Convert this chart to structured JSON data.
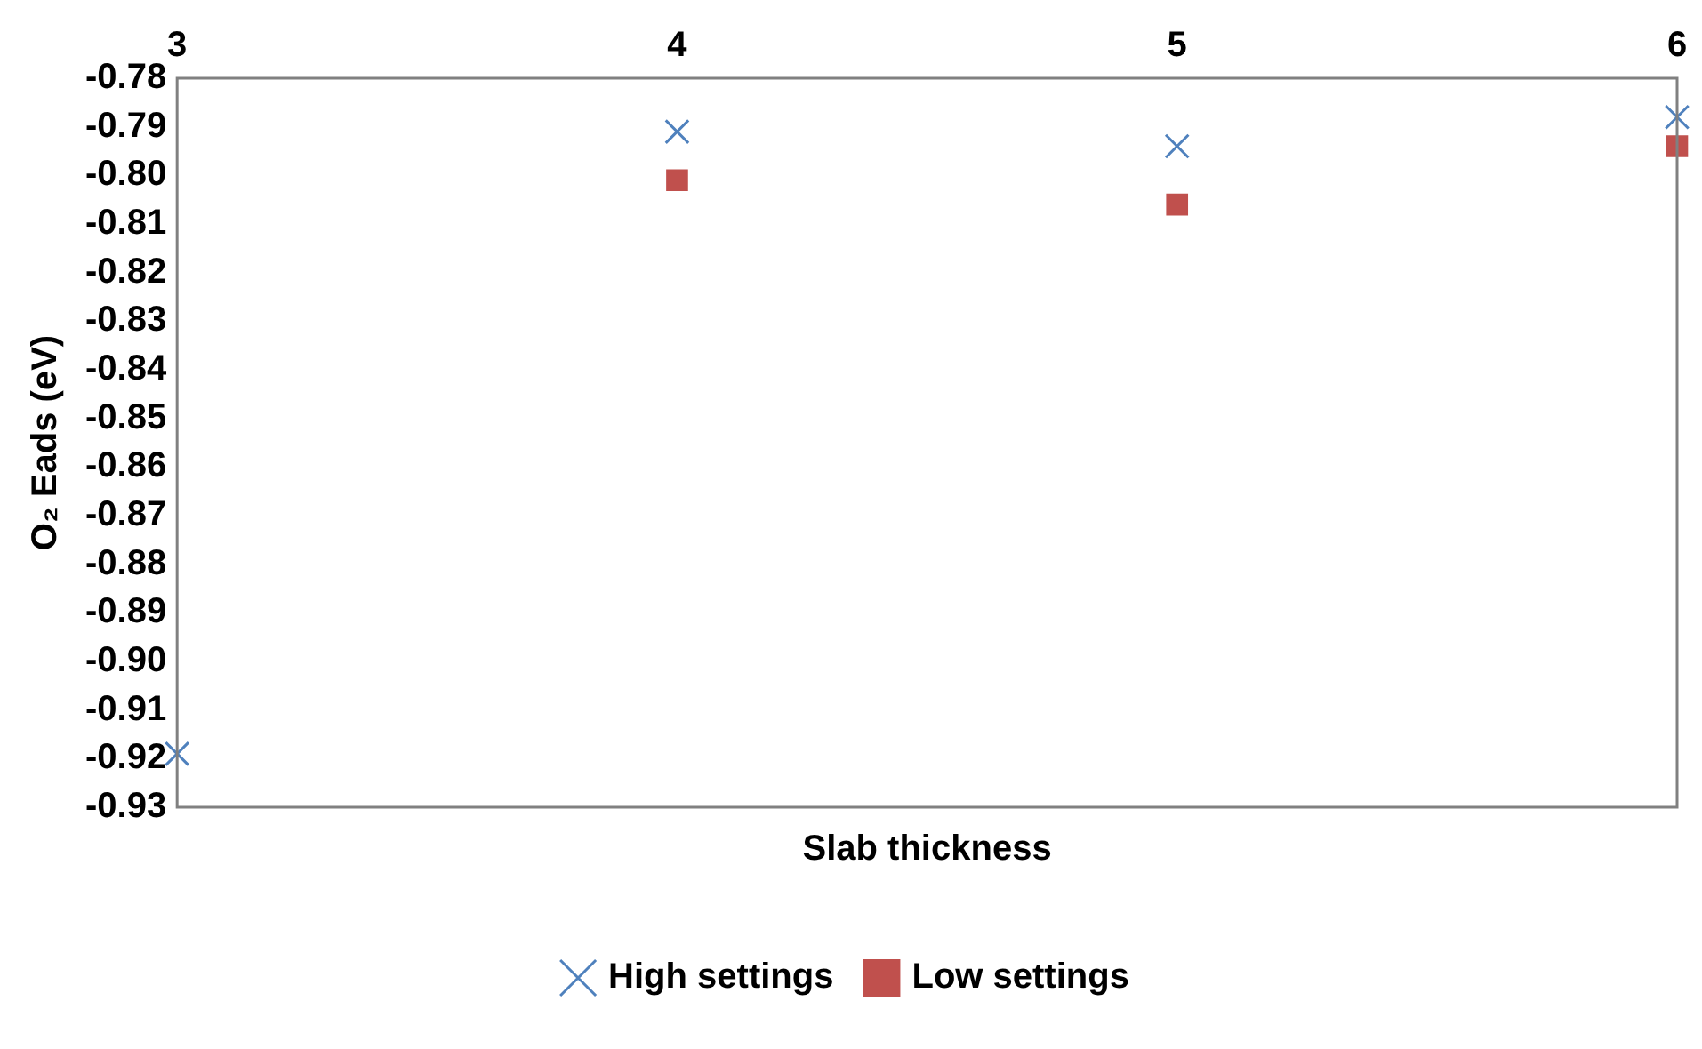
{
  "chart_data": {
    "type": "scatter",
    "xlabel": "Slab thickness",
    "ylabel": "O₂ Eads (eV)",
    "x": [
      3,
      4,
      5,
      6
    ],
    "series": [
      {
        "name": "High settings",
        "color": "#4f81bd",
        "marker": "cross",
        "values": [
          -0.919,
          -0.791,
          -0.794,
          -0.788
        ]
      },
      {
        "name": "Low settings",
        "color": "#c0504d",
        "marker": "square",
        "values": [
          null,
          -0.801,
          -0.806,
          -0.794
        ]
      }
    ],
    "xlim": [
      3,
      6
    ],
    "xticks": [
      3,
      4,
      5,
      6
    ],
    "ylim": [
      -0.93,
      -0.78
    ],
    "yticks": [
      -0.93,
      -0.92,
      -0.91,
      {
        "value": -0.9,
        "label": "-0.90"
      },
      -0.89,
      -0.88,
      -0.87,
      -0.86,
      -0.85,
      -0.84,
      -0.83,
      -0.82,
      -0.81,
      {
        "value": -0.8,
        "label": "-0.80"
      },
      -0.79,
      -0.78
    ],
    "grid": false,
    "legend": "bottom"
  }
}
